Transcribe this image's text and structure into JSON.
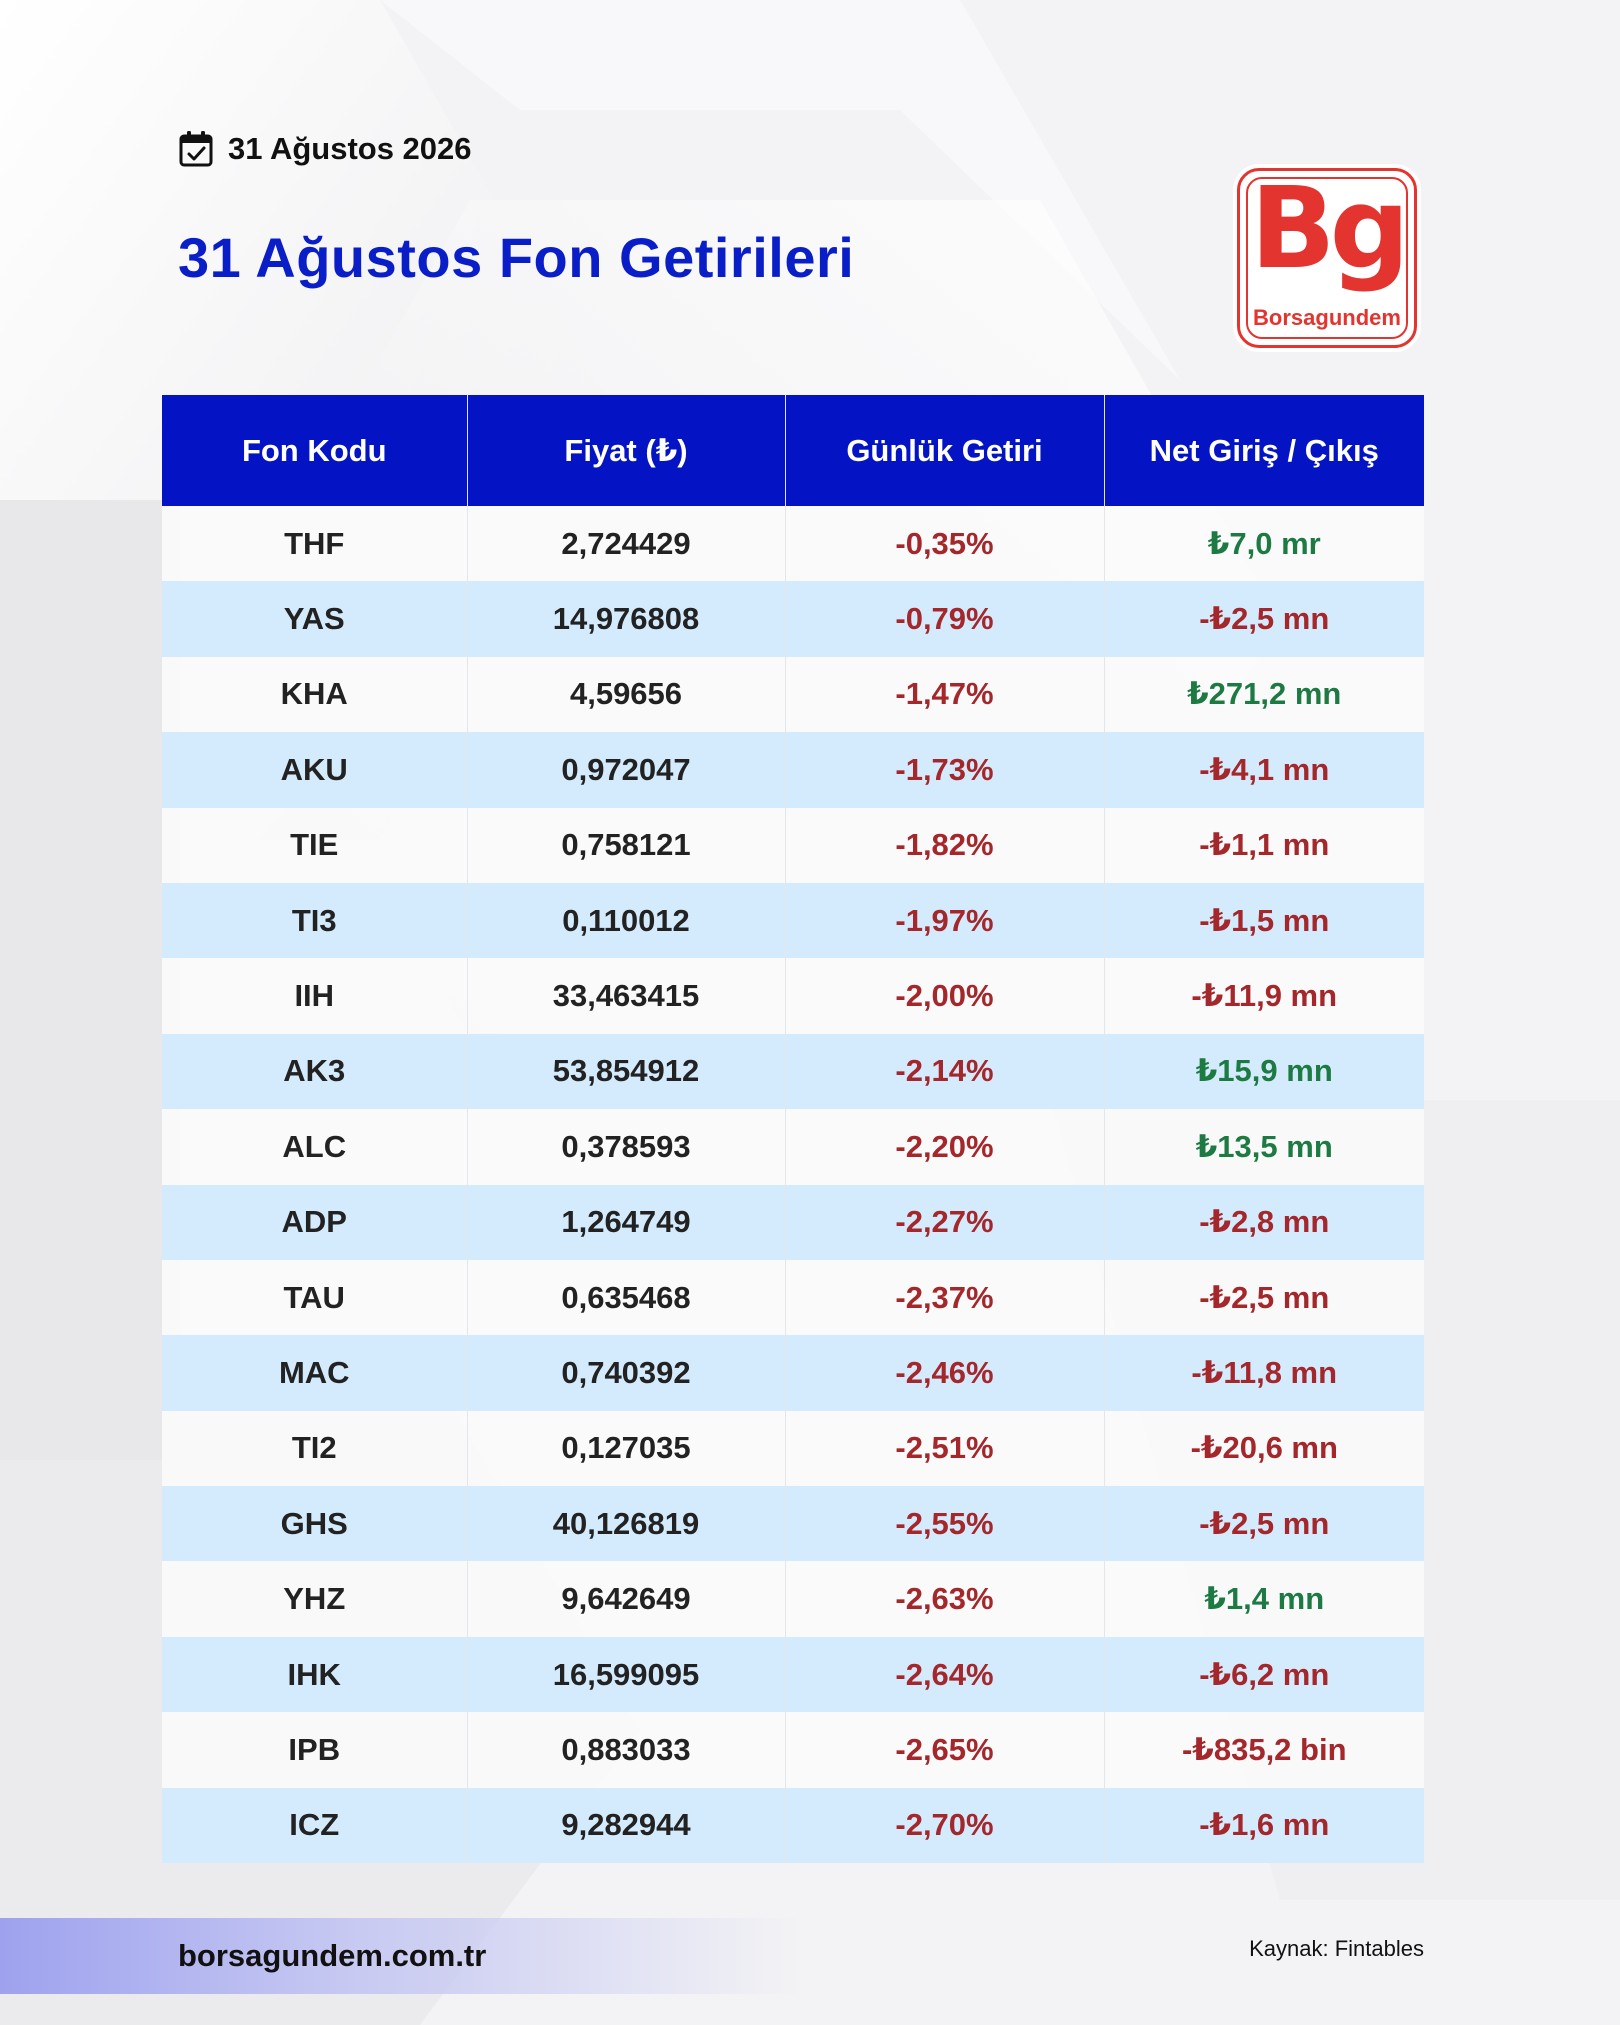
{
  "header": {
    "date": "31 Ağustos 2026",
    "title": "31 Ağustos Fon Getirileri"
  },
  "logo": {
    "mark": "Bg",
    "name": "Borsagundem"
  },
  "table": {
    "columns": [
      "Fon Kodu",
      "Fiyat (₺)",
      "Günlük Getiri",
      "Net Giriş / Çıkış"
    ],
    "rows": [
      {
        "code": "THF",
        "price": "2,724429",
        "daily": "-0,35%",
        "flow": "₺7,0 mr",
        "flow_sign": "pos"
      },
      {
        "code": "YAS",
        "price": "14,976808",
        "daily": "-0,79%",
        "flow": "-₺2,5 mn",
        "flow_sign": "neg"
      },
      {
        "code": "KHA",
        "price": "4,59656",
        "daily": "-1,47%",
        "flow": "₺271,2 mn",
        "flow_sign": "pos"
      },
      {
        "code": "AKU",
        "price": "0,972047",
        "daily": "-1,73%",
        "flow": "-₺4,1 mn",
        "flow_sign": "neg"
      },
      {
        "code": "TIE",
        "price": "0,758121",
        "daily": "-1,82%",
        "flow": "-₺1,1 mn",
        "flow_sign": "neg"
      },
      {
        "code": "TI3",
        "price": "0,110012",
        "daily": "-1,97%",
        "flow": "-₺1,5 mn",
        "flow_sign": "neg"
      },
      {
        "code": "IIH",
        "price": "33,463415",
        "daily": "-2,00%",
        "flow": "-₺11,9 mn",
        "flow_sign": "neg"
      },
      {
        "code": "AK3",
        "price": "53,854912",
        "daily": "-2,14%",
        "flow": "₺15,9 mn",
        "flow_sign": "pos"
      },
      {
        "code": "ALC",
        "price": "0,378593",
        "daily": "-2,20%",
        "flow": "₺13,5 mn",
        "flow_sign": "pos"
      },
      {
        "code": "ADP",
        "price": "1,264749",
        "daily": "-2,27%",
        "flow": "-₺2,8 mn",
        "flow_sign": "neg"
      },
      {
        "code": "TAU",
        "price": "0,635468",
        "daily": "-2,37%",
        "flow": "-₺2,5 mn",
        "flow_sign": "neg"
      },
      {
        "code": "MAC",
        "price": "0,740392",
        "daily": "-2,46%",
        "flow": "-₺11,8 mn",
        "flow_sign": "neg"
      },
      {
        "code": "TI2",
        "price": "0,127035",
        "daily": "-2,51%",
        "flow": "-₺20,6 mn",
        "flow_sign": "neg"
      },
      {
        "code": "GHS",
        "price": "40,126819",
        "daily": "-2,55%",
        "flow": "-₺2,5 mn",
        "flow_sign": "neg"
      },
      {
        "code": "YHZ",
        "price": "9,642649",
        "daily": "-2,63%",
        "flow": "₺1,4 mn",
        "flow_sign": "pos"
      },
      {
        "code": "IHK",
        "price": "16,599095",
        "daily": "-2,64%",
        "flow": "-₺6,2 mn",
        "flow_sign": "neg"
      },
      {
        "code": "IPB",
        "price": "0,883033",
        "daily": "-2,65%",
        "flow": "-₺835,2 bin",
        "flow_sign": "neg"
      },
      {
        "code": "ICZ",
        "price": "9,282944",
        "daily": "-2,70%",
        "flow": "-₺1,6 mn",
        "flow_sign": "neg"
      }
    ]
  },
  "footer": {
    "url": "borsagundem.com.tr",
    "source": "Kaynak: Fintables"
  },
  "colors": {
    "accent_blue": "#0414c5",
    "title_blue": "#0a1ec8",
    "negative": "#a3272b",
    "positive": "#1d7a43",
    "stripe": "#d4ebfd",
    "logo_red": "#e3342f"
  },
  "icons": {
    "date": "calendar-check-icon"
  }
}
